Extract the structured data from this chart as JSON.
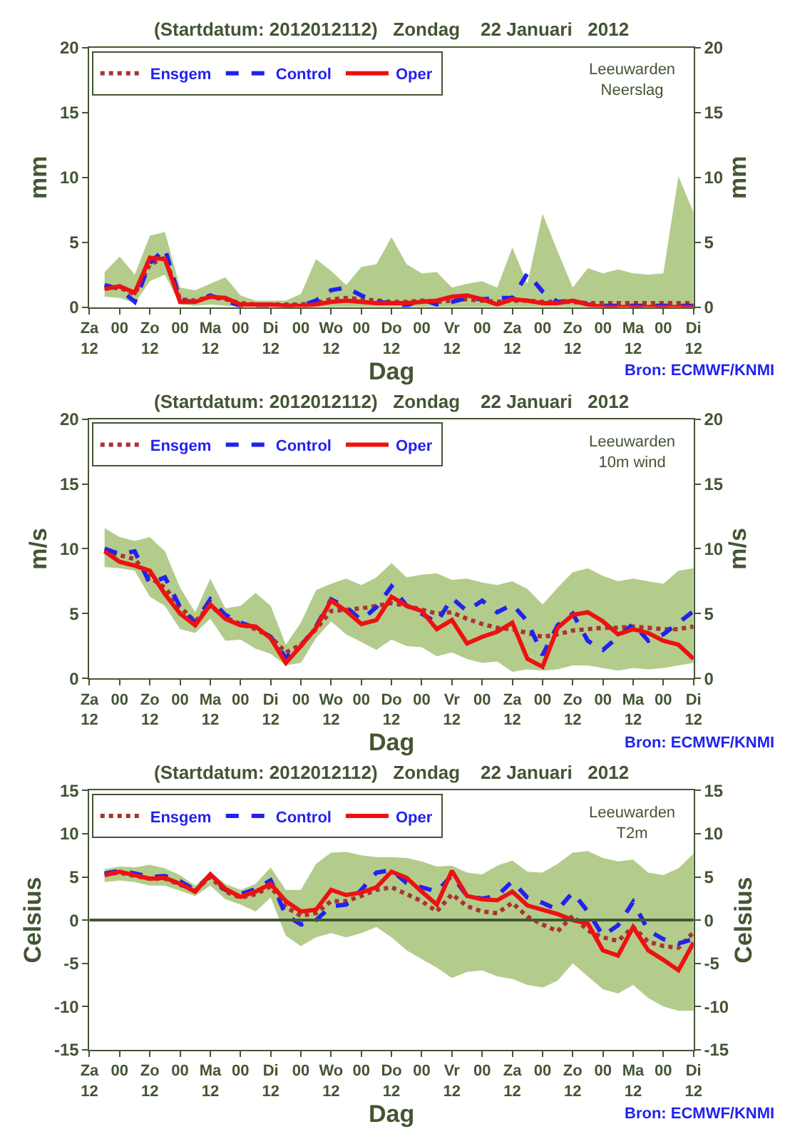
{
  "chart_data": [
    {
      "type": "line",
      "title": "(Startdatum: 2012012112)   Zondag    22 Januari   2012",
      "xlabel": "Dag",
      "ylabel": "mm",
      "y2label": "mm",
      "categories": [
        "Za\n12",
        null,
        "00",
        null,
        "Zo\n12",
        null,
        "00",
        null,
        "Ma\n12",
        null,
        "00",
        null,
        "Di\n12",
        null,
        "00",
        null,
        "Wo\n12",
        null,
        "00",
        null,
        "Do\n12",
        null,
        "00",
        null,
        "Vr\n12",
        null,
        "00",
        null,
        "Za\n12",
        null,
        "00",
        null,
        "Zo\n12",
        null,
        "00",
        null,
        "Ma\n12",
        null,
        "00",
        null,
        "Di\n12"
      ],
      "ylim": [
        0,
        20
      ],
      "yticks": [
        0,
        5,
        10,
        15,
        20
      ],
      "y2lim": [
        0,
        20
      ],
      "y2ticks": [
        0,
        5,
        10,
        15,
        20
      ],
      "legend": "top left",
      "marker": "none",
      "annotations": [
        "Leeuwarden\nNeerslag",
        "Bron: ECMWF/KNMI"
      ],
      "series": [
        {
          "name": "Ensgem",
          "color": "#aa3333",
          "line_style": "dotted",
          "values": [
            null,
            1.5,
            1.5,
            1.0,
            3.3,
            3.8,
            0.6,
            0.5,
            0.8,
            0.6,
            0.3,
            0.2,
            0.2,
            0.2,
            0.2,
            0.3,
            0.6,
            0.7,
            0.6,
            0.5,
            0.4,
            0.4,
            0.5,
            0.4,
            0.5,
            0.6,
            0.5,
            0.4,
            0.5,
            0.5,
            0.4,
            0.4,
            0.4,
            0.3,
            0.3,
            0.3,
            0.3,
            0.3,
            0.3,
            0.3,
            0.3
          ],
          "lower": [
            null,
            0.8,
            0.7,
            0.3,
            2.0,
            2.5,
            0.2,
            0.1,
            0.2,
            0.1,
            0,
            0,
            0,
            0,
            0,
            0,
            0,
            0,
            0,
            0,
            0,
            0,
            0,
            0,
            0,
            0,
            0,
            0,
            0,
            0,
            0,
            0,
            0,
            0,
            0,
            0,
            0,
            0,
            0,
            0,
            0
          ],
          "upper": [
            null,
            2.7,
            3.9,
            2.5,
            5.5,
            5.8,
            1.5,
            1.3,
            1.8,
            2.3,
            0.9,
            0.5,
            0.5,
            0.5,
            1.0,
            3.7,
            2.8,
            1.7,
            3.1,
            3.3,
            5.4,
            3.3,
            2.6,
            2.7,
            1.5,
            1.8,
            2.0,
            1.5,
            4.6,
            1.8,
            7.2,
            4.3,
            1.5,
            3.0,
            2.6,
            2.9,
            2.6,
            2.5,
            2.6,
            10.1,
            7.3
          ]
        },
        {
          "name": "Control",
          "color": "#2222ee",
          "line_style": "dashed",
          "values": [
            null,
            1.7,
            1.4,
            0.4,
            3.4,
            4.5,
            0.5,
            0.4,
            0.9,
            0.5,
            0.1,
            0.1,
            0.1,
            0.1,
            0.1,
            0.5,
            1.3,
            1.5,
            0.9,
            0.4,
            0.3,
            0.1,
            0.6,
            0.2,
            0.4,
            0.7,
            0.6,
            0.7,
            0.7,
            2.6,
            1.2,
            0.4,
            0.5,
            0.2,
            0.1,
            0.1,
            0.1,
            0.1,
            0.1,
            0.1,
            0.1
          ]
        },
        {
          "name": "Oper",
          "color": "#ee1111",
          "line_style": "solid",
          "values": [
            null,
            1.4,
            1.6,
            1.1,
            3.8,
            3.7,
            0.4,
            0.4,
            0.8,
            0.7,
            0.2,
            0.2,
            0.2,
            0.1,
            0.1,
            0.2,
            0.4,
            0.5,
            0.4,
            0.3,
            0.3,
            0.3,
            0.4,
            0.5,
            0.8,
            0.9,
            0.6,
            0.2,
            0.6,
            0.5,
            0.3,
            0.3,
            0.5,
            0.2,
            0.0,
            0.0,
            0.0,
            0.0,
            0.0,
            0.0,
            0.0
          ]
        }
      ]
    },
    {
      "type": "line",
      "title": "(Startdatum: 2012012112)   Zondag    22 Januari   2012",
      "xlabel": "Dag",
      "ylabel": "m/s",
      "y2label": "m/s",
      "categories": [
        "Za\n12",
        null,
        "00",
        null,
        "Zo\n12",
        null,
        "00",
        null,
        "Ma\n12",
        null,
        "00",
        null,
        "Di\n12",
        null,
        "00",
        null,
        "Wo\n12",
        null,
        "00",
        null,
        "Do\n12",
        null,
        "00",
        null,
        "Vr\n12",
        null,
        "00",
        null,
        "Za\n12",
        null,
        "00",
        null,
        "Zo\n12",
        null,
        "00",
        null,
        "Ma\n12",
        null,
        "00",
        null,
        "Di\n12"
      ],
      "ylim": [
        0,
        20
      ],
      "yticks": [
        0,
        5,
        10,
        15,
        20
      ],
      "y2lim": [
        0,
        20
      ],
      "y2ticks": [
        0,
        5,
        10,
        15,
        20
      ],
      "legend": "top left",
      "marker": "none",
      "annotations": [
        "Leeuwarden\n10m wind",
        "Bron: ECMWF/KNMI"
      ],
      "series": [
        {
          "name": "Ensgem",
          "color": "#aa3333",
          "line_style": "dotted",
          "values": [
            null,
            9.9,
            9.5,
            9.2,
            7.8,
            7.0,
            5.5,
            4.4,
            5.6,
            4.7,
            4.2,
            3.8,
            3.2,
            2.0,
            2.6,
            3.8,
            5.2,
            5.3,
            5.4,
            5.6,
            5.8,
            5.6,
            5.3,
            5.0,
            5.1,
            4.6,
            4.2,
            3.9,
            3.8,
            3.5,
            3.2,
            3.4,
            3.7,
            3.8,
            3.9,
            3.9,
            4.0,
            3.9,
            3.8,
            3.8,
            4.0
          ],
          "lower": [
            null,
            8.6,
            8.5,
            8.3,
            6.3,
            5.6,
            3.8,
            3.5,
            4.6,
            2.9,
            3.0,
            2.3,
            1.9,
            1.0,
            1.2,
            3.1,
            4.4,
            3.4,
            2.8,
            2.2,
            3.0,
            2.5,
            2.4,
            1.7,
            2.0,
            1.5,
            1.2,
            1.3,
            0.5,
            0.7,
            0.6,
            0.7,
            1.0,
            1.0,
            0.8,
            0.6,
            0.8,
            0.7,
            0.8,
            1.0,
            1.2
          ],
          "upper": [
            null,
            11.6,
            10.9,
            10.6,
            10.9,
            9.8,
            7.0,
            5.1,
            7.7,
            5.4,
            5.6,
            6.6,
            5.6,
            2.6,
            4.3,
            6.8,
            7.3,
            7.7,
            7.2,
            7.8,
            8.9,
            7.8,
            8.0,
            8.1,
            7.6,
            7.7,
            7.4,
            7.2,
            7.5,
            6.9,
            5.7,
            7.0,
            8.2,
            8.5,
            7.9,
            7.5,
            7.7,
            7.5,
            7.3,
            8.3,
            8.5
          ]
        },
        {
          "name": "Control",
          "color": "#2222ee",
          "line_style": "dashed",
          "values": [
            null,
            10.0,
            9.6,
            9.8,
            7.3,
            7.8,
            5.5,
            4.3,
            6.1,
            4.9,
            4.3,
            3.9,
            3.2,
            1.6,
            2.5,
            4.0,
            6.1,
            5.5,
            4.5,
            5.5,
            7.1,
            5.6,
            5.0,
            4.3,
            6.2,
            5.2,
            6.0,
            5.1,
            5.7,
            4.4,
            1.8,
            4.1,
            5.0,
            2.9,
            2.2,
            3.2,
            4.2,
            2.9,
            3.4,
            4.3,
            5.2
          ]
        },
        {
          "name": "Oper",
          "color": "#ee1111",
          "line_style": "solid",
          "values": [
            null,
            9.8,
            9.0,
            8.7,
            8.3,
            6.5,
            5.0,
            4.1,
            5.7,
            4.6,
            4.1,
            4.0,
            3.1,
            1.2,
            2.5,
            3.9,
            6.0,
            5.2,
            4.2,
            4.5,
            6.3,
            5.6,
            5.2,
            3.8,
            4.5,
            2.7,
            3.2,
            3.6,
            4.3,
            1.5,
            0.9,
            3.9,
            4.9,
            5.1,
            4.4,
            3.4,
            3.8,
            3.5,
            2.9,
            2.6,
            1.5
          ]
        }
      ]
    },
    {
      "type": "line",
      "title": "(Startdatum: 2012012112)   Zondag    22 Januari   2012",
      "xlabel": "Dag",
      "ylabel": "Celsius",
      "y2label": "Celsius",
      "categories": [
        "Za\n12",
        null,
        "00",
        null,
        "Zo\n12",
        null,
        "00",
        null,
        "Ma\n12",
        null,
        "00",
        null,
        "Di\n12",
        null,
        "00",
        null,
        "Wo\n12",
        null,
        "00",
        null,
        "Do\n12",
        null,
        "00",
        null,
        "Vr\n12",
        null,
        "00",
        null,
        "Za\n12",
        null,
        "00",
        null,
        "Zo\n12",
        null,
        "00",
        null,
        "Ma\n12",
        null,
        "00",
        null,
        "Di\n12"
      ],
      "ylim": [
        -15,
        15
      ],
      "yticks": [
        -15,
        -10,
        -5,
        0,
        5,
        10,
        15
      ],
      "y2lim": [
        -15,
        15
      ],
      "y2ticks": [
        -15,
        -10,
        -5,
        0,
        5,
        10,
        15
      ],
      "legend": "top left",
      "marker": "none",
      "ref_lines": [
        {
          "axis": "y",
          "value": 0,
          "color": "#445533"
        }
      ],
      "annotations": [
        "Leeuwarden\nT2m",
        "Bron: ECMWF/KNMI"
      ],
      "series": [
        {
          "name": "Ensgem",
          "color": "#aa3333",
          "line_style": "dotted",
          "values": [
            null,
            5.3,
            5.5,
            5.1,
            4.8,
            4.8,
            4.1,
            3.4,
            5.0,
            3.3,
            2.6,
            3.0,
            3.9,
            1.5,
            0.5,
            0.8,
            2.2,
            2.2,
            2.8,
            3.5,
            3.8,
            3.0,
            2.2,
            1.0,
            3.0,
            1.6,
            1.0,
            0.8,
            2.0,
            0.4,
            -0.5,
            -1.3,
            0.5,
            -1.2,
            -2.0,
            -2.4,
            -0.8,
            -2.5,
            -3.0,
            -3.2,
            -1.4
          ],
          "lower": [
            null,
            4.4,
            4.6,
            4.4,
            4.0,
            4.0,
            3.4,
            2.8,
            4.0,
            2.4,
            1.8,
            1.0,
            2.6,
            -1.8,
            -3.0,
            -2.0,
            -1.5,
            -2.0,
            -1.5,
            -0.8,
            -2.0,
            -3.5,
            -4.5,
            -5.5,
            -6.7,
            -6.0,
            -5.8,
            -6.5,
            -6.8,
            -7.5,
            -7.8,
            -7.0,
            -5.0,
            -6.5,
            -8.0,
            -8.5,
            -7.5,
            -9.0,
            -10.0,
            -10.5,
            -10.5
          ],
          "upper": [
            null,
            5.9,
            6.2,
            6.1,
            6.4,
            6.0,
            5.2,
            4.0,
            5.6,
            4.2,
            3.5,
            4.2,
            6.1,
            3.5,
            3.5,
            6.5,
            7.8,
            7.9,
            7.5,
            7.3,
            7.3,
            7.2,
            6.8,
            6.2,
            6.3,
            5.5,
            5.3,
            6.3,
            6.9,
            5.6,
            5.5,
            6.5,
            7.8,
            8.0,
            7.2,
            6.8,
            7.0,
            5.5,
            5.2,
            6.0,
            7.7
          ]
        },
        {
          "name": "Control",
          "color": "#2222ee",
          "line_style": "dashed",
          "values": [
            null,
            5.4,
            5.7,
            5.4,
            5.0,
            5.1,
            4.5,
            3.5,
            5.2,
            3.5,
            3.0,
            3.6,
            4.6,
            0.6,
            -0.5,
            0.0,
            1.6,
            1.8,
            3.5,
            5.5,
            5.8,
            4.3,
            3.8,
            3.3,
            5.2,
            2.8,
            2.5,
            2.8,
            4.5,
            2.6,
            2.0,
            1.2,
            3.2,
            1.0,
            -1.8,
            -0.6,
            2.1,
            -1.2,
            -2.2,
            -2.7,
            -2.2
          ]
        },
        {
          "name": "Oper",
          "color": "#ee1111",
          "line_style": "solid",
          "values": [
            null,
            5.2,
            5.6,
            5.2,
            4.8,
            4.9,
            4.2,
            3.3,
            5.3,
            3.6,
            2.7,
            3.3,
            4.2,
            2.2,
            1.0,
            1.2,
            3.5,
            2.9,
            3.2,
            3.8,
            5.6,
            4.9,
            3.3,
            1.8,
            5.7,
            2.8,
            2.4,
            2.3,
            3.3,
            1.7,
            1.2,
            0.7,
            0.0,
            -0.4,
            -3.5,
            -4.1,
            -0.8,
            -3.5,
            -4.6,
            -5.8,
            -2.6
          ]
        }
      ]
    }
  ]
}
